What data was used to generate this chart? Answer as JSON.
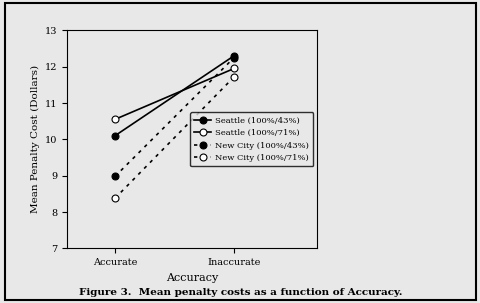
{
  "x_labels": [
    "Accurate",
    "Inaccurate"
  ],
  "x_positions": [
    1,
    2
  ],
  "series": [
    {
      "label": "Seattle (100%/43%)",
      "y": [
        10.1,
        12.3
      ],
      "linestyle": "solid",
      "marker": "o",
      "markerfacecolor": "black",
      "color": "black",
      "linewidth": 1.2,
      "markersize": 5,
      "dashes": null
    },
    {
      "label": "Seattle (100%/71%)",
      "y": [
        10.55,
        11.95
      ],
      "linestyle": "solid",
      "marker": "o",
      "markerfacecolor": "white",
      "color": "black",
      "linewidth": 1.2,
      "markersize": 5,
      "dashes": null
    },
    {
      "label": "New City (100%/43%)",
      "y": [
        8.98,
        12.25
      ],
      "linestyle": "dotted",
      "marker": "o",
      "markerfacecolor": "black",
      "color": "black",
      "linewidth": 1.2,
      "markersize": 5,
      "dashes": [
        2,
        3
      ]
    },
    {
      "label": "New City (100%/71%)",
      "y": [
        8.38,
        11.72
      ],
      "linestyle": "dotted",
      "marker": "o",
      "markerfacecolor": "white",
      "color": "black",
      "linewidth": 1.2,
      "markersize": 5,
      "dashes": [
        2,
        3
      ]
    }
  ],
  "ylabel": "Mean Penalty Cost (Dollars)",
  "xlabel": "Accuracy",
  "ylim": [
    7,
    13
  ],
  "yticks": [
    7,
    8,
    9,
    10,
    11,
    12,
    13
  ],
  "xlim": [
    0.6,
    2.7
  ],
  "caption": "Figure 3.  Mean penalty costs as a function of Accuracy.",
  "figure_background": "#e8e8e8",
  "plot_background": "#e8e8e8"
}
